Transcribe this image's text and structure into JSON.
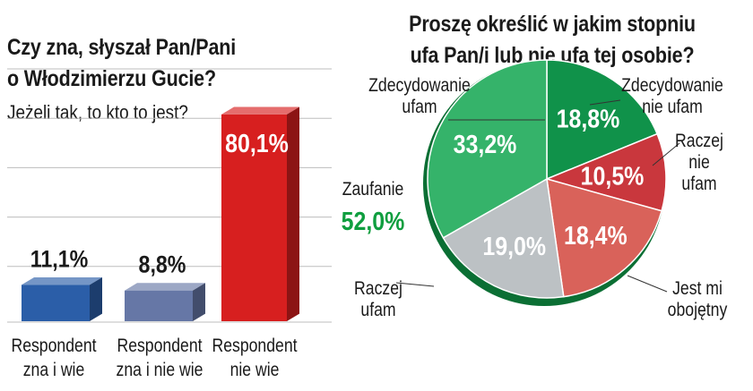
{
  "left_chart": {
    "title_lines": [
      "Czy zna, słyszał Pan/Pani",
      "o Włodzimierzu Gucie?"
    ],
    "subtitle": "Jeżeli tak, to kto to jest?"
  },
  "right_chart": {
    "title_lines": [
      "Proszę określić w jakim stopniu",
      "ufa Pan/i lub nie ufa tej osobie?"
    ],
    "group_label": "Zaufanie",
    "group_value": "52,0%",
    "slice_labels": [
      [
        "Zdecydowanie",
        "ufam"
      ],
      [
        "Zdecydowanie",
        "nie ufam"
      ],
      [
        "Raczej",
        "nie",
        "ufam"
      ],
      [
        "Jest mi",
        "obojętny"
      ],
      [
        "Raczej",
        "ufam"
      ]
    ]
  },
  "colors": {
    "blue": "#2b5ea8",
    "slate": "#6677a6",
    "red": "#d71f1f",
    "dark_green": "#10924a",
    "green": "#35b36a",
    "dark_red": "#c9373d",
    "salmon": "#d9625a",
    "grey": "#bcc1c4",
    "value_green": "#0f9e3f",
    "grid": "#bdbdbd"
  },
  "chart_data": [
    {
      "type": "bar",
      "categories": [
        "Respondent zna i wie",
        "Respondent zna i nie wie",
        "Respondent nie wie"
      ],
      "values": [
        11.1,
        8.8,
        80.1
      ],
      "value_labels": [
        "11,1%",
        "8,8%",
        "80,1%"
      ],
      "ylim": [
        0,
        100
      ],
      "grid": true
    },
    {
      "type": "pie",
      "categories": [
        "Zdecydowanie ufam",
        "Zdecydowanie nie ufam",
        "Raczej nie ufam",
        "Jest mi obojętny",
        "Raczej ufam"
      ],
      "values": [
        18.8,
        10.5,
        18.4,
        19.0,
        33.2
      ],
      "value_labels": [
        "18,8%",
        "10,5%",
        "18,4%",
        "19,0%",
        "33,2%"
      ]
    }
  ]
}
